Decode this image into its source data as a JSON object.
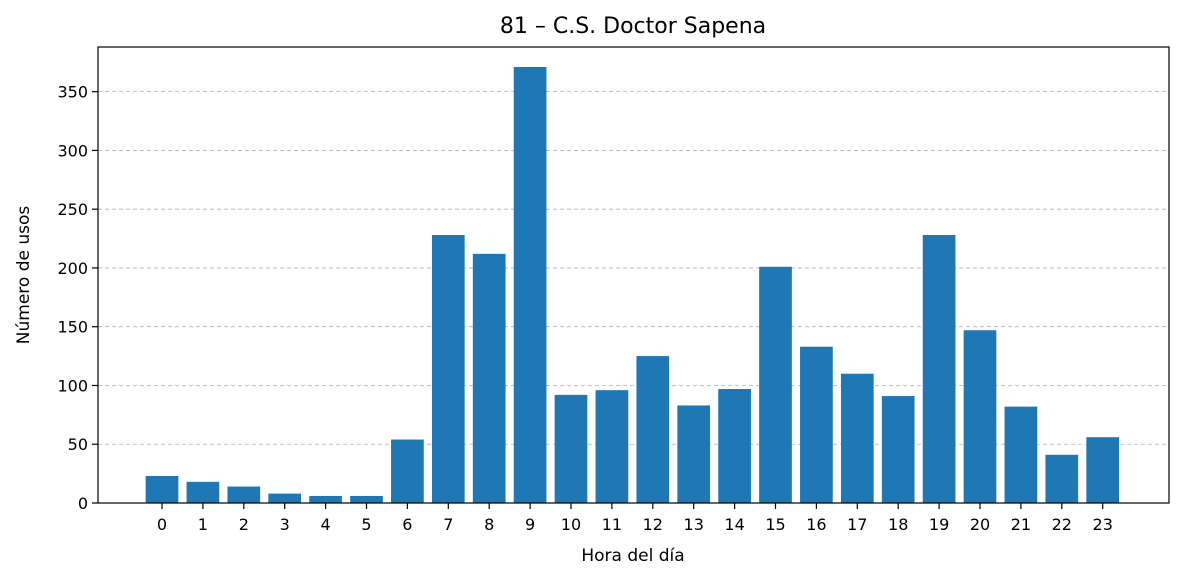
{
  "chart_data": {
    "type": "bar",
    "title": "81 – C.S. Doctor Sapena",
    "xlabel": "Hora del día",
    "ylabel": "Número de usos",
    "categories": [
      "0",
      "1",
      "2",
      "3",
      "4",
      "5",
      "6",
      "7",
      "8",
      "9",
      "10",
      "11",
      "12",
      "13",
      "14",
      "15",
      "16",
      "17",
      "18",
      "19",
      "20",
      "21",
      "22",
      "23"
    ],
    "values": [
      23,
      18,
      14,
      8,
      6,
      6,
      54,
      228,
      212,
      371,
      92,
      96,
      125,
      83,
      97,
      201,
      133,
      110,
      91,
      228,
      147,
      82,
      41,
      56
    ],
    "ylim": [
      0,
      388
    ],
    "yticks": [
      0,
      50,
      100,
      150,
      200,
      250,
      300,
      350
    ],
    "grid": "horizontal dashed",
    "bar_color": "#1f77b4"
  }
}
